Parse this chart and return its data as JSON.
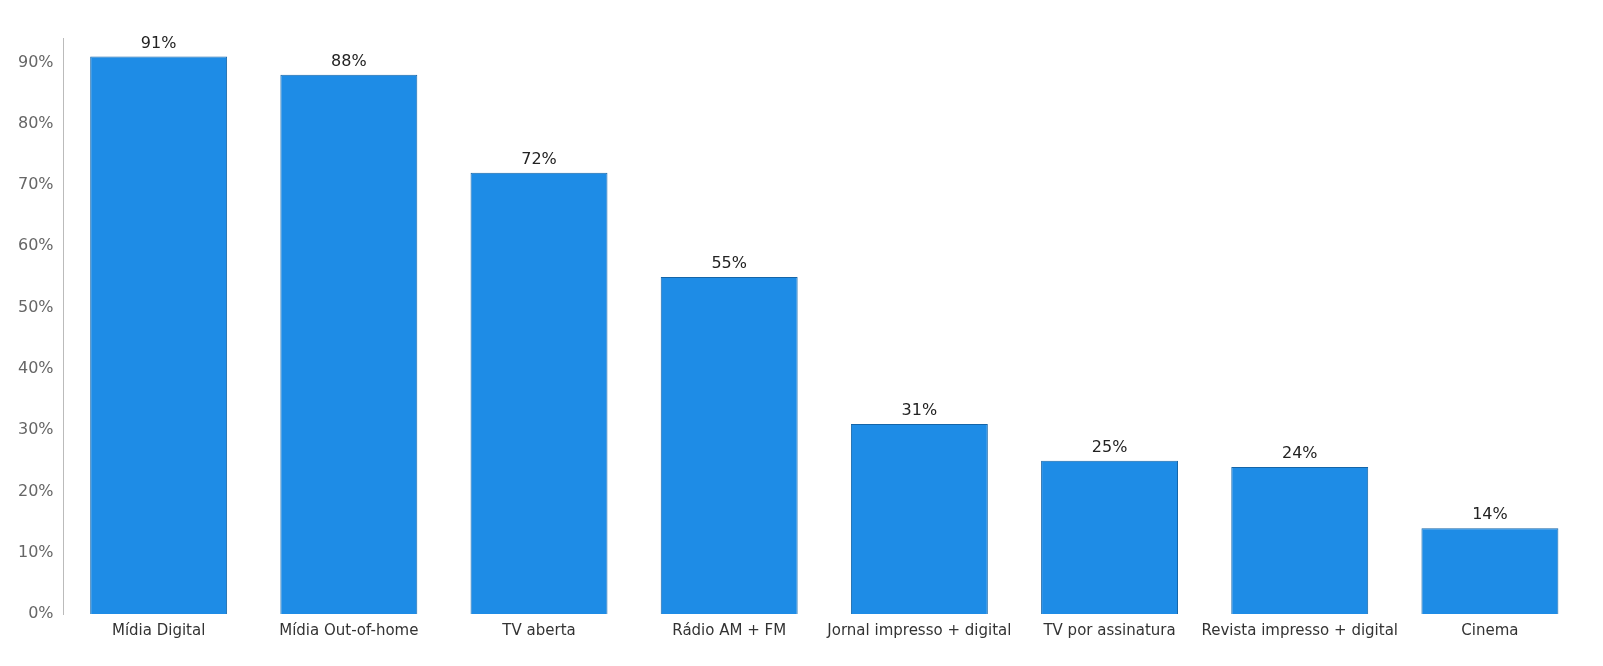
{
  "chart_data": {
    "type": "bar",
    "categories": [
      "Mídia Digital",
      "Mídia Out-of-home",
      "TV aberta",
      "Rádio AM + FM",
      "Jornal impresso + digital",
      "TV por assinatura",
      "Revista impresso + digital",
      "Cinema"
    ],
    "values": [
      91,
      88,
      72,
      55,
      31,
      25,
      24,
      14
    ],
    "value_labels": [
      "91%",
      "88%",
      "72%",
      "55%",
      "31%",
      "25%",
      "24%",
      "14%"
    ],
    "color": "#1e8ce6",
    "ylim": [
      0,
      94
    ],
    "yticks": [
      {
        "value": 0,
        "label": "0%"
      },
      {
        "value": 10,
        "label": "10%"
      },
      {
        "value": 20,
        "label": "20%"
      },
      {
        "value": 30,
        "label": "30%"
      },
      {
        "value": 40,
        "label": "40%"
      },
      {
        "value": 50,
        "label": "50%"
      },
      {
        "value": 60,
        "label": "60%"
      },
      {
        "value": 70,
        "label": "70%"
      },
      {
        "value": 80,
        "label": "80%"
      },
      {
        "value": 90,
        "label": "90%"
      }
    ],
    "grid": false,
    "legend": false
  }
}
